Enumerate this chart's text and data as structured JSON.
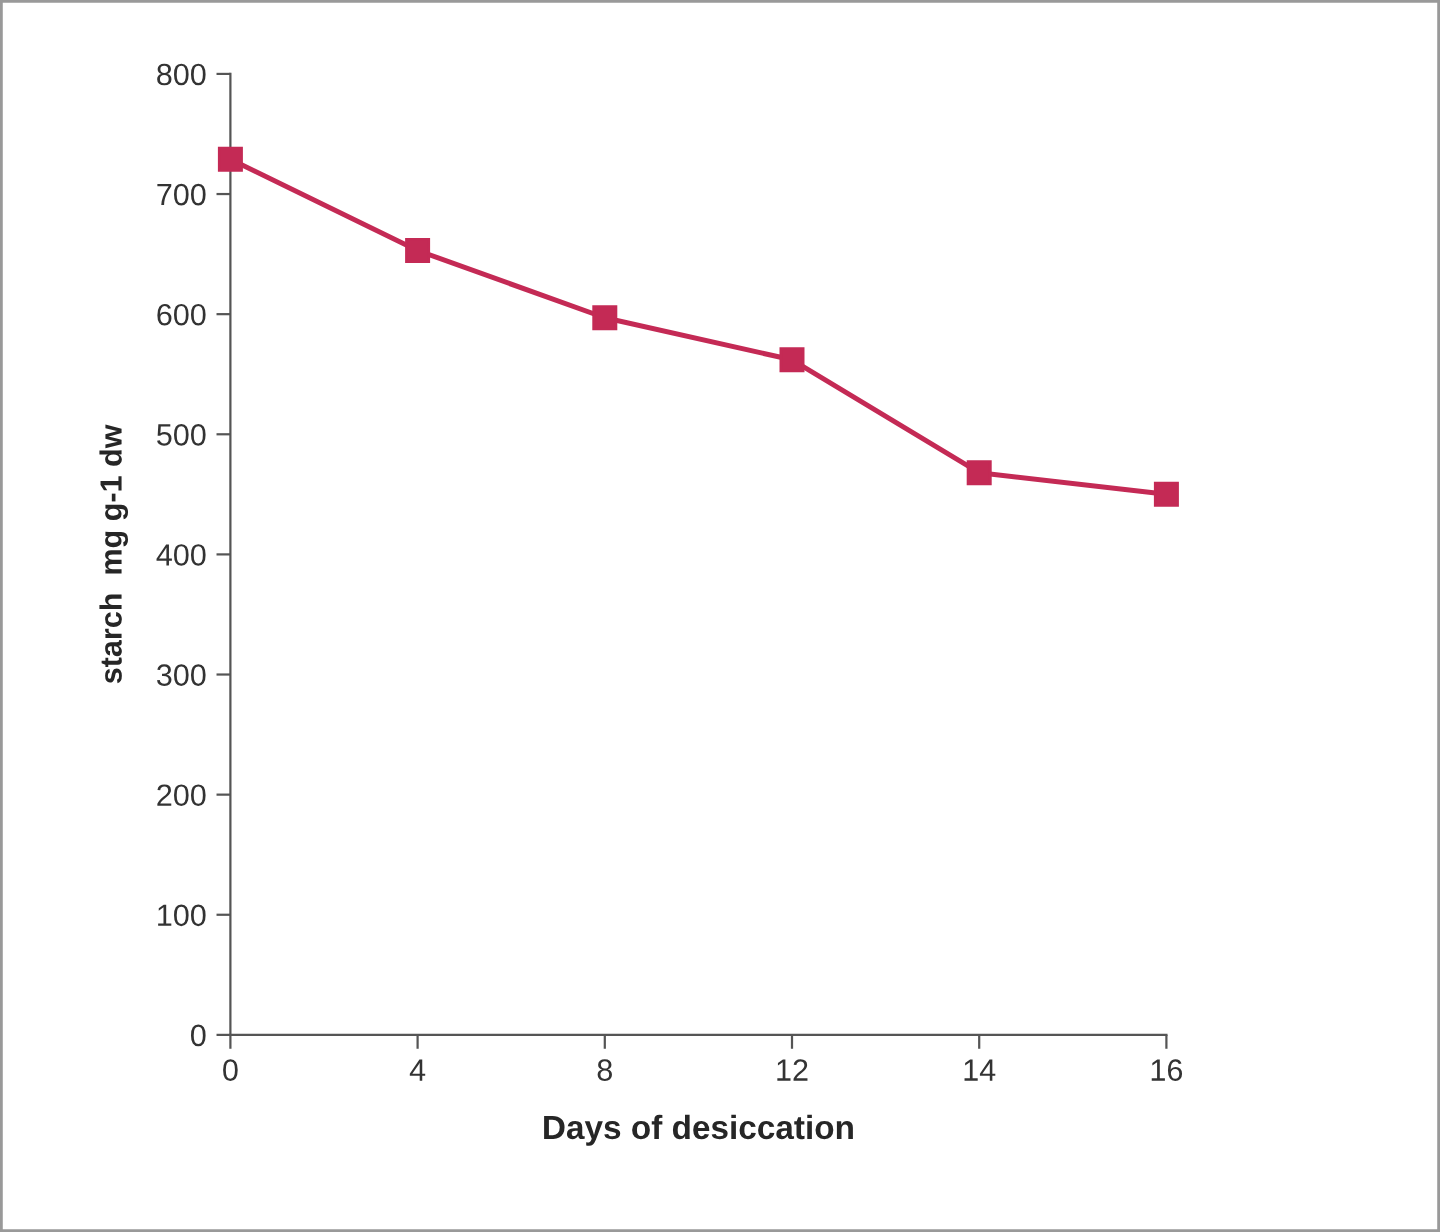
{
  "chart_data": {
    "type": "line",
    "xlabel": "Days of desiccation",
    "ylabel": "starch  mg g-1 dw",
    "categories": [
      "0",
      "4",
      "8",
      "12",
      "14",
      "16"
    ],
    "series": [
      {
        "color": "#c42a55",
        "values": [
          729,
          653,
          597,
          562,
          468,
          450
        ]
      }
    ],
    "ylim": [
      0,
      800
    ],
    "yticks": [
      0,
      100,
      200,
      300,
      400,
      500,
      600,
      700,
      800
    ],
    "marker": "square",
    "line_style": "solid",
    "grid": false,
    "legend": false
  }
}
